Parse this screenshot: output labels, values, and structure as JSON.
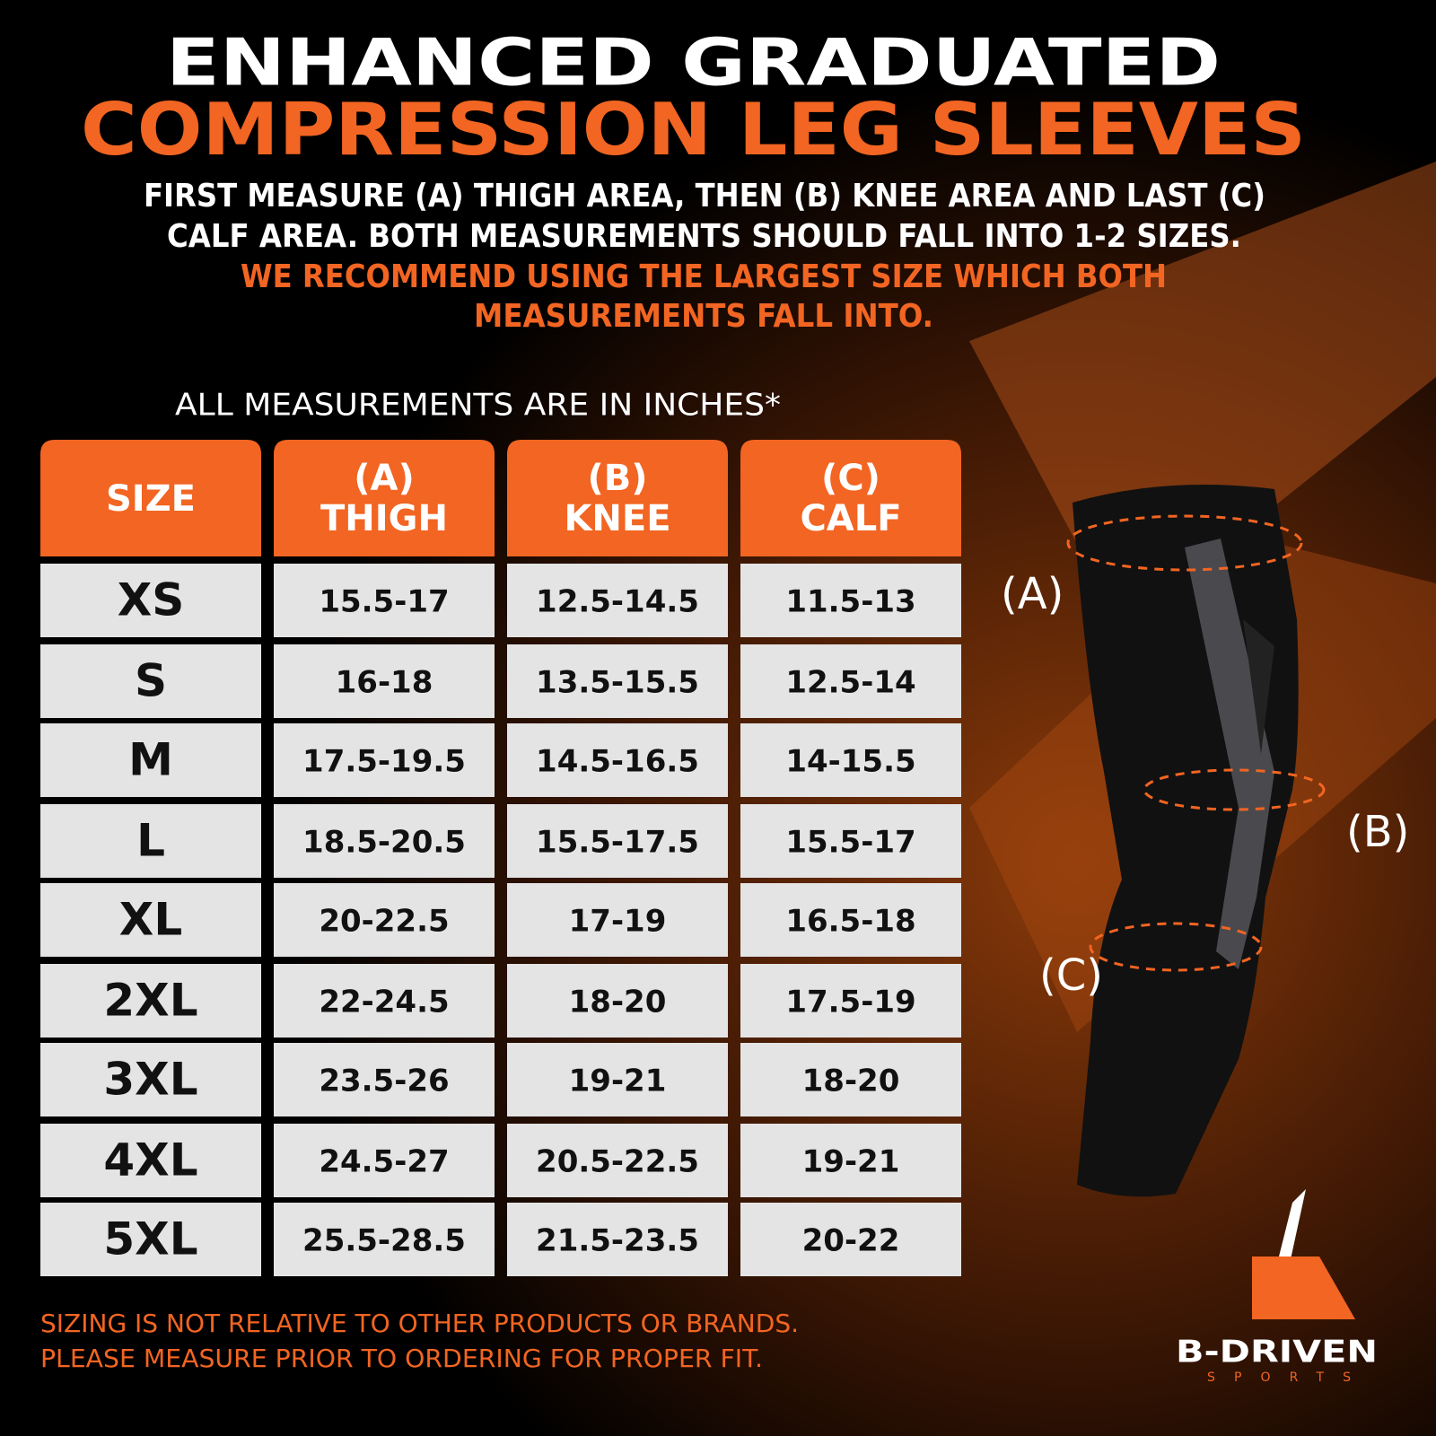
{
  "header": {
    "title_line1": "ENHANCED GRADUATED",
    "title_line2": "COMPRESSION LEG SLEEVES",
    "instructions": [
      "FIRST MEASURE (A) THIGH AREA, THEN (B) KNEE AREA AND LAST (C)",
      "CALF AREA. BOTH MEASUREMENTS SHOULD FALL INTO 1-2 SIZES."
    ],
    "recommendation": [
      "WE RECOMMEND USING THE LARGEST SIZE WHICH BOTH",
      "MEASUREMENTS FALL INTO."
    ]
  },
  "units_note": "ALL MEASUREMENTS ARE IN INCHES*",
  "table": {
    "headers": [
      [
        "SIZE"
      ],
      [
        "(A)",
        "THIGH"
      ],
      [
        "(B)",
        "KNEE"
      ],
      [
        "(C)",
        "CALF"
      ]
    ],
    "rows": [
      [
        "XS",
        "15.5-17",
        "12.5-14.5",
        "11.5-13"
      ],
      [
        "S",
        "16-18",
        "13.5-15.5",
        "12.5-14"
      ],
      [
        "M",
        "17.5-19.5",
        "14.5-16.5",
        "14-15.5"
      ],
      [
        "L",
        "18.5-20.5",
        "15.5-17.5",
        "15.5-17"
      ],
      [
        "XL",
        "20-22.5",
        "17-19",
        "16.5-18"
      ],
      [
        "2XL",
        "22-24.5",
        "18-20",
        "17.5-19"
      ],
      [
        "3XL",
        "23.5-26",
        "19-21",
        "18-20"
      ],
      [
        "4XL",
        "24.5-27",
        "20.5-22.5",
        "19-21"
      ],
      [
        "5XL",
        "25.5-28.5",
        "21.5-23.5",
        "20-22"
      ]
    ]
  },
  "diagram_labels": [
    "(A)",
    "(B)",
    "(C)"
  ],
  "footer": [
    "SIZING IS NOT RELATIVE TO OTHER PRODUCTS OR BRANDS.",
    "PLEASE MEASURE PRIOR TO ORDERING FOR PROPER FIT."
  ],
  "brand": {
    "name": "B-DRIVEN",
    "tagline": "SPORTS"
  }
}
